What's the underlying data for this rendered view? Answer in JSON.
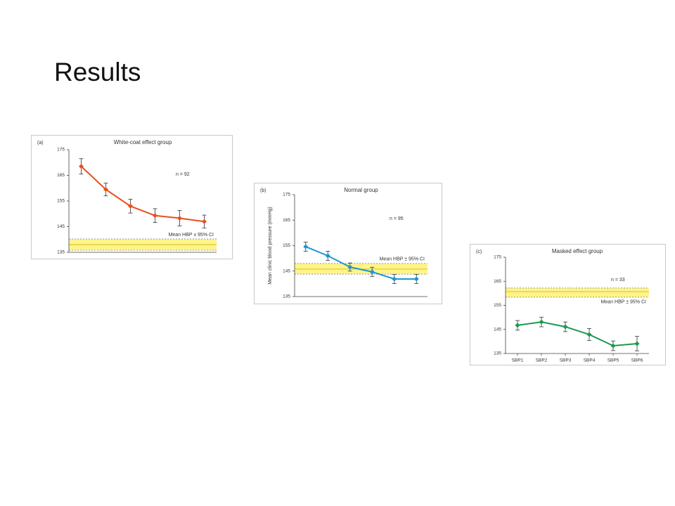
{
  "slide_title": "Results",
  "chart_data": [
    {
      "type": "line",
      "panel_label": "(a)",
      "title": "White-coat effect group",
      "n_label": "n = 92",
      "band_label": "Mean HBP ± 95% CI",
      "categories": [
        null,
        null,
        null,
        null,
        null,
        null
      ],
      "values": [
        168.5,
        159.5,
        153,
        149.3,
        148.3,
        147
      ],
      "errors": [
        3,
        2.5,
        2.7,
        2.7,
        3,
        2.5
      ],
      "color": "#e8501e",
      "ylim": [
        135,
        175
      ],
      "yticks": [
        135,
        145,
        155,
        165,
        175
      ],
      "band": {
        "mean": 138,
        "lower": 135.8,
        "upper": 140.2
      },
      "band_color": "#fff48a"
    },
    {
      "type": "line",
      "panel_label": "(b)",
      "title": "Normal group",
      "n_label": "n = 95",
      "band_label": "Mean HBP ± 95% CI",
      "y_label": "Mean clinic blood pressure (mmHg)",
      "categories": [
        null,
        null,
        null,
        null,
        null,
        null
      ],
      "values": [
        154.6,
        151,
        146.6,
        144.7,
        141.9,
        141.9
      ],
      "errors": [
        1.8,
        1.8,
        1.6,
        1.8,
        1.8,
        1.8
      ],
      "color": "#1e96d2",
      "ylim": [
        135,
        175
      ],
      "yticks": [
        135,
        145,
        155,
        165,
        175
      ],
      "band": {
        "mean": 145.8,
        "lower": 143.8,
        "upper": 148
      },
      "band_color": "#fff48a"
    },
    {
      "type": "line",
      "panel_label": "(c)",
      "title": "Masked effect group",
      "n_label": "n = 33",
      "band_label": "Mean HBP ± 95% CI",
      "categories": [
        "SBP1",
        "SBP2",
        "SBP3",
        "SBP4",
        "SBP5",
        "SBP6"
      ],
      "values": [
        146.7,
        148.1,
        146.1,
        142.9,
        138.2,
        139.1
      ],
      "errors": [
        2,
        2,
        2,
        2.5,
        2,
        3
      ],
      "color": "#1a9a50",
      "ylim": [
        135,
        175
      ],
      "yticks": [
        135,
        145,
        155,
        165,
        175
      ],
      "band": {
        "mean": 160.7,
        "lower": 158.4,
        "upper": 162.2
      },
      "band_color": "#fff48a"
    }
  ]
}
